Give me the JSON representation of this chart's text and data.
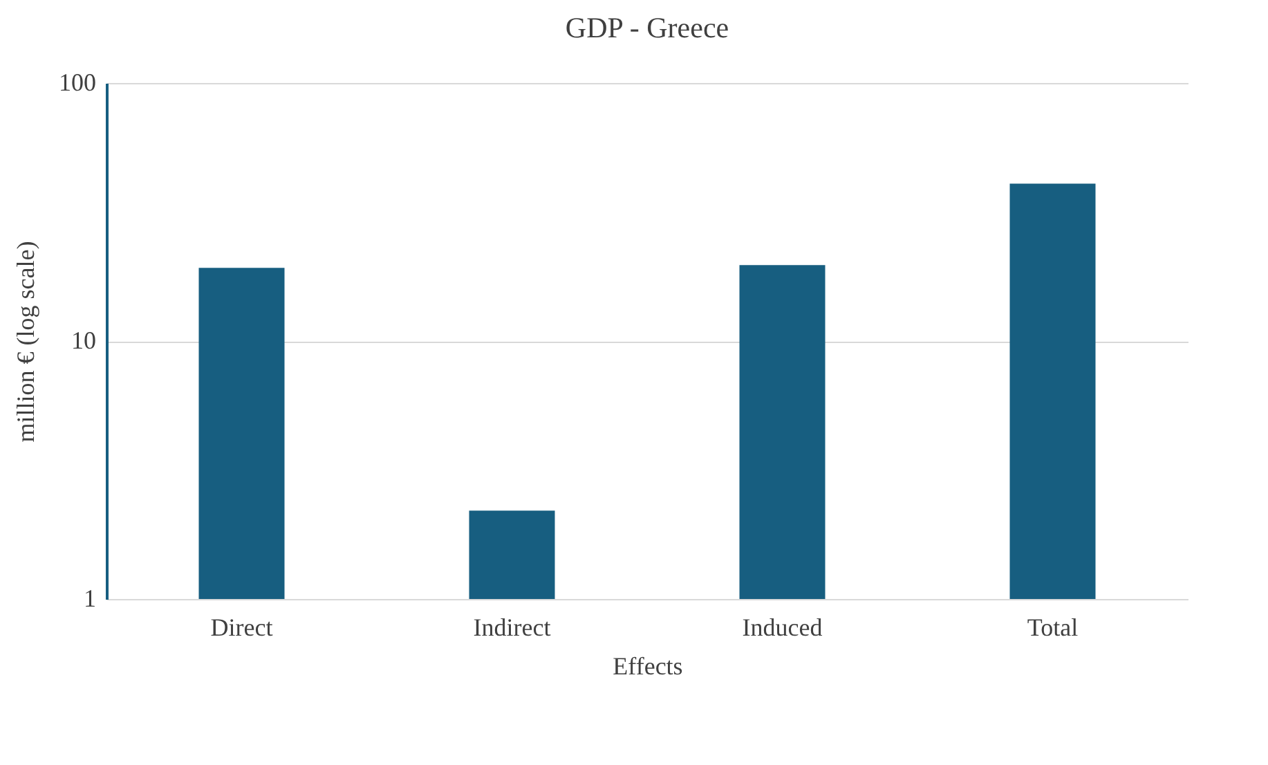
{
  "chart_data": {
    "type": "bar",
    "title": "GDP - Greece",
    "xlabel": "Effects",
    "ylabel": "million € (log scale)",
    "categories": [
      "Direct",
      "Indirect",
      "Induced",
      "Total"
    ],
    "values": [
      19.2,
      2.2,
      19.7,
      40.7
    ],
    "color": "#175e80",
    "log": true,
    "ylim": [
      1,
      100
    ],
    "yticks": [
      1,
      10,
      100
    ],
    "grid": "y"
  }
}
